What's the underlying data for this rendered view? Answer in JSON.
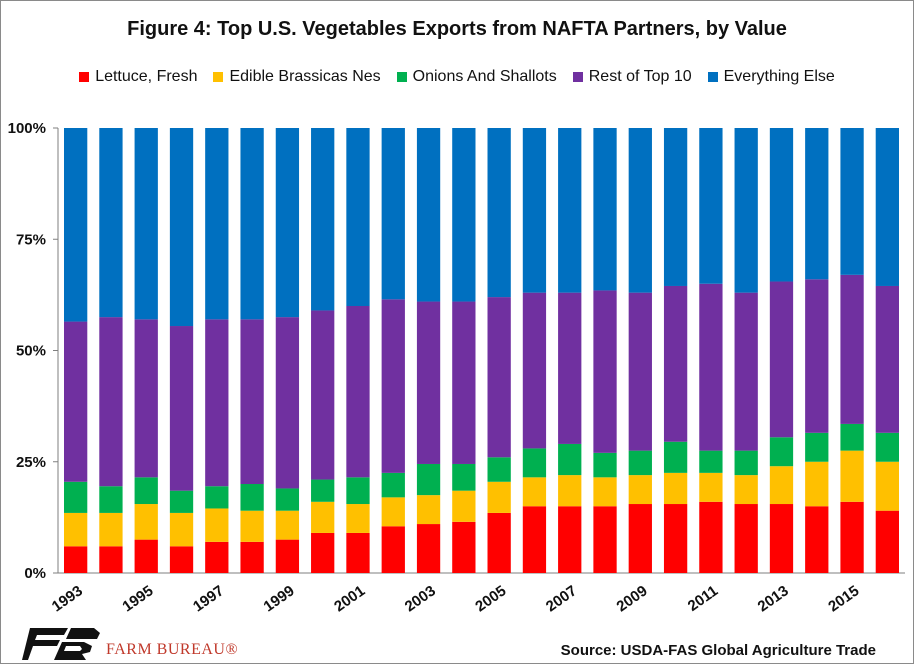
{
  "chart_data": {
    "type": "bar",
    "stacked": true,
    "title": "Figure 4: Top U.S. Vegetables Exports from NAFTA Partners, by Value",
    "xlabel": "",
    "ylabel": "",
    "ylim": [
      0,
      100
    ],
    "yticks": [
      "0%",
      "25%",
      "50%",
      "75%",
      "100%"
    ],
    "xticks_shown": [
      "1993",
      "1995",
      "1997",
      "1999",
      "2001",
      "2003",
      "2005",
      "2007",
      "2009",
      "2011",
      "2013",
      "2015"
    ],
    "categories": [
      "1993",
      "1994",
      "1995",
      "1996",
      "1997",
      "1998",
      "1999",
      "2000",
      "2001",
      "2002",
      "2003",
      "2004",
      "2005",
      "2006",
      "2007",
      "2008",
      "2009",
      "2010",
      "2011",
      "2012",
      "2013",
      "2014",
      "2015",
      "2016"
    ],
    "legend_position": "top",
    "series": [
      {
        "name": "Lettuce, Fresh",
        "color": "#ff0000",
        "values": [
          6,
          6,
          7.5,
          6,
          7,
          7,
          7.5,
          9,
          9,
          10.5,
          11,
          11.5,
          13.5,
          15,
          15,
          15,
          15.5,
          15.5,
          16,
          15.5,
          15.5,
          15,
          16,
          14
        ]
      },
      {
        "name": "Edible Brassicas Nes",
        "color": "#ffc000",
        "values": [
          7.5,
          7.5,
          8,
          7.5,
          7.5,
          7,
          6.5,
          7,
          6.5,
          6.5,
          6.5,
          7,
          7,
          6.5,
          7,
          6.5,
          6.5,
          7,
          6.5,
          6.5,
          8.5,
          10,
          11.5,
          11
        ]
      },
      {
        "name": "Onions And Shallots",
        "color": "#00b050",
        "values": [
          7,
          6,
          6,
          5,
          5,
          6,
          5,
          5,
          6,
          5.5,
          7,
          6,
          5.5,
          6.5,
          7,
          5.5,
          5.5,
          7,
          5,
          5.5,
          6.5,
          6.5,
          6,
          6.5
        ]
      },
      {
        "name": "Rest of Top 10",
        "color": "#7030a0",
        "values": [
          36,
          38,
          35.5,
          37,
          37.5,
          37,
          38.5,
          38,
          38.5,
          39,
          36.5,
          36.5,
          36,
          35,
          34,
          36.5,
          35.5,
          35,
          37.5,
          35.5,
          35,
          34.5,
          33.5,
          33
        ]
      },
      {
        "name": "Everything Else",
        "color": "#0070c0",
        "values": [
          43.5,
          42.5,
          43,
          44.5,
          43,
          43,
          42.5,
          41,
          40,
          38.5,
          39,
          39,
          38,
          37,
          37,
          36.5,
          37,
          35.5,
          35,
          37,
          34.5,
          34,
          33,
          35.5
        ]
      }
    ]
  },
  "footer": {
    "logo_text": "FARM BUREAU®",
    "source": "Source: USDA-FAS Global Agriculture Trade"
  }
}
